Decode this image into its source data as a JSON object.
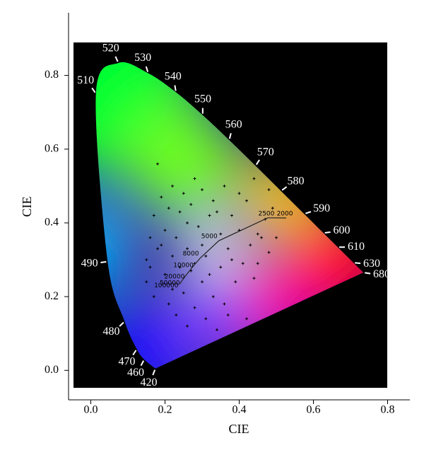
{
  "chart_data": {
    "type": "chromaticity",
    "xlabel": "CIE",
    "ylabel": "CIE",
    "xlim": [
      -0.06,
      0.86
    ],
    "ylim": [
      -0.08,
      0.97
    ],
    "xticks": [
      {
        "value": 0,
        "label": "0.0"
      },
      {
        "value": 0.2,
        "label": "0.2"
      },
      {
        "value": 0.4,
        "label": "0.4"
      },
      {
        "value": 0.6,
        "label": "0.6"
      },
      {
        "value": 0.8,
        "label": "0.8"
      }
    ],
    "yticks": [
      {
        "value": 0,
        "label": "0.0"
      },
      {
        "value": 0.2,
        "label": "0.2"
      },
      {
        "value": 0.4,
        "label": "0.4"
      },
      {
        "value": 0.6,
        "label": "0.6"
      },
      {
        "value": 0.8,
        "label": "0.8"
      }
    ],
    "spectral_locus": {
      "labels": [
        "420",
        "460",
        "470",
        "480",
        "490",
        "510",
        "520",
        "530",
        "540",
        "550",
        "560",
        "570",
        "580",
        "590",
        "600",
        "610",
        "630",
        "680"
      ],
      "x": [
        0.1741,
        0.144,
        0.1241,
        0.0913,
        0.0454,
        0.0139,
        0.0743,
        0.1547,
        0.2296,
        0.3016,
        0.3731,
        0.4441,
        0.5125,
        0.5752,
        0.627,
        0.6658,
        0.7079,
        0.7347
      ],
      "y": [
        0.005,
        0.0297,
        0.0578,
        0.1327,
        0.295,
        0.7502,
        0.8338,
        0.8059,
        0.7543,
        0.6923,
        0.6245,
        0.5547,
        0.4866,
        0.4242,
        0.3725,
        0.334,
        0.292,
        0.2653
      ]
    },
    "planckian_locus": {
      "labels": [
        "100000",
        "50000",
        "20000",
        "10000",
        "8000",
        "5000",
        "2500",
        "2000"
      ],
      "x": [
        0.2399,
        0.244,
        0.2568,
        0.2807,
        0.2952,
        0.3451,
        0.477,
        0.5267
      ],
      "y": [
        0.2342,
        0.241,
        0.2583,
        0.2883,
        0.3048,
        0.3516,
        0.4137,
        0.4133
      ]
    },
    "series": [
      {
        "name": "points",
        "color": "#000000",
        "x": [
          0.15,
          0.15,
          0.16,
          0.16,
          0.17,
          0.17,
          0.18,
          0.18,
          0.19,
          0.2,
          0.2,
          0.21,
          0.21,
          0.22,
          0.22,
          0.23,
          0.23,
          0.24,
          0.25,
          0.25,
          0.26,
          0.26,
          0.27,
          0.27,
          0.28,
          0.28,
          0.29,
          0.3,
          0.3,
          0.31,
          0.31,
          0.32,
          0.33,
          0.33,
          0.34,
          0.35,
          0.35,
          0.36,
          0.37,
          0.37,
          0.38,
          0.39,
          0.4,
          0.4,
          0.41,
          0.42,
          0.43,
          0.44,
          0.45,
          0.45,
          0.46,
          0.47,
          0.48,
          0.48,
          0.49,
          0.5,
          0.22,
          0.24,
          0.26,
          0.3,
          0.32,
          0.36,
          0.38,
          0.42,
          0.44,
          0.19,
          0.28,
          0.34,
          0.46,
          0.4
        ],
        "y": [
          0.3,
          0.24,
          0.36,
          0.28,
          0.42,
          0.2,
          0.56,
          0.33,
          0.47,
          0.26,
          0.38,
          0.18,
          0.44,
          0.31,
          0.5,
          0.15,
          0.36,
          0.43,
          0.21,
          0.48,
          0.12,
          0.33,
          0.45,
          0.27,
          0.52,
          0.17,
          0.39,
          0.24,
          0.49,
          0.14,
          0.31,
          0.42,
          0.2,
          0.46,
          0.11,
          0.37,
          0.28,
          0.5,
          0.15,
          0.33,
          0.42,
          0.24,
          0.1,
          0.38,
          0.29,
          0.46,
          0.34,
          0.52,
          0.37,
          0.29,
          0.55,
          0.41,
          0.49,
          0.32,
          0.44,
          0.36,
          0.22,
          0.28,
          0.4,
          0.34,
          0.26,
          0.18,
          0.3,
          0.14,
          0.25,
          0.34,
          0.29,
          0.43,
          0.36,
          0.48
        ]
      }
    ]
  }
}
